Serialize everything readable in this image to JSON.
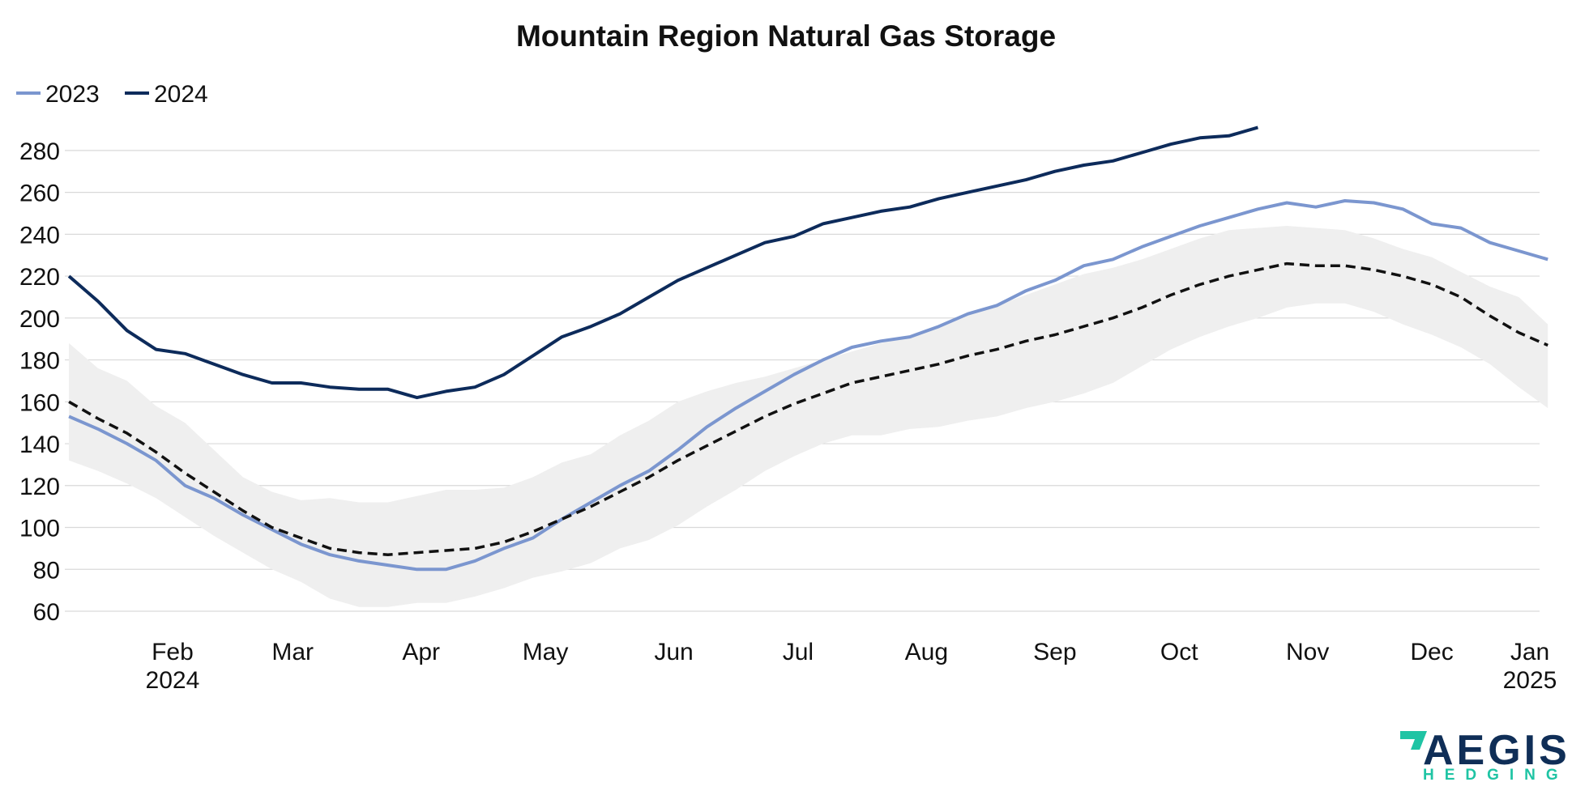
{
  "chart_data": {
    "type": "line",
    "title": "Mountain Region Natural Gas Storage",
    "xlabel": "",
    "ylabel": "",
    "ylim": [
      60,
      290
    ],
    "xlim": [
      "2024-01-06",
      "2024-12-27"
    ],
    "y_ticks": [
      60,
      80,
      100,
      120,
      140,
      160,
      180,
      200,
      220,
      240,
      260,
      280
    ],
    "x_ticks": [
      {
        "date": "2024-02-01",
        "label": "Feb",
        "sublabel": "2024"
      },
      {
        "date": "2024-03-01",
        "label": "Mar",
        "sublabel": ""
      },
      {
        "date": "2024-04-01",
        "label": "Apr",
        "sublabel": ""
      },
      {
        "date": "2024-05-01",
        "label": "May",
        "sublabel": ""
      },
      {
        "date": "2024-06-01",
        "label": "Jun",
        "sublabel": ""
      },
      {
        "date": "2024-07-01",
        "label": "Jul",
        "sublabel": ""
      },
      {
        "date": "2024-08-01",
        "label": "Aug",
        "sublabel": ""
      },
      {
        "date": "2024-09-01",
        "label": "Sep",
        "sublabel": ""
      },
      {
        "date": "2024-10-01",
        "label": "Oct",
        "sublabel": ""
      },
      {
        "date": "2024-11-01",
        "label": "Nov",
        "sublabel": ""
      },
      {
        "date": "2024-12-01",
        "label": "Dec",
        "sublabel": ""
      },
      {
        "date": "2025-01-01",
        "label": "Jan",
        "sublabel": "2025"
      }
    ],
    "grid": true,
    "legend_position": "top-left",
    "x": [
      "2024-01-07",
      "2024-01-14",
      "2024-01-21",
      "2024-01-28",
      "2024-02-04",
      "2024-02-11",
      "2024-02-18",
      "2024-02-25",
      "2024-03-03",
      "2024-03-10",
      "2024-03-17",
      "2024-03-24",
      "2024-03-31",
      "2024-04-07",
      "2024-04-14",
      "2024-04-21",
      "2024-04-28",
      "2024-05-05",
      "2024-05-12",
      "2024-05-19",
      "2024-05-26",
      "2024-06-02",
      "2024-06-09",
      "2024-06-16",
      "2024-06-23",
      "2024-06-30",
      "2024-07-07",
      "2024-07-14",
      "2024-07-21",
      "2024-07-28",
      "2024-08-04",
      "2024-08-11",
      "2024-08-18",
      "2024-08-25",
      "2024-09-01",
      "2024-09-08",
      "2024-09-15",
      "2024-09-22",
      "2024-09-29",
      "2024-10-06",
      "2024-10-13",
      "2024-10-20",
      "2024-10-27",
      "2024-11-03",
      "2024-11-10",
      "2024-11-17",
      "2024-11-24",
      "2024-12-01",
      "2024-12-08",
      "2024-12-15",
      "2024-12-22",
      "2024-12-29"
    ],
    "series": [
      {
        "name": "2023",
        "color": "#7b96cf",
        "style": "solid",
        "values": [
          153,
          147,
          140,
          132,
          120,
          114,
          106,
          99,
          92,
          87,
          84,
          82,
          80,
          80,
          84,
          90,
          95,
          104,
          112,
          120,
          127,
          137,
          148,
          157,
          165,
          173,
          180,
          186,
          189,
          191,
          196,
          202,
          206,
          213,
          218,
          225,
          228,
          234,
          239,
          244,
          248,
          252,
          255,
          253,
          256,
          255,
          252,
          245,
          243,
          236,
          232,
          228
        ]
      },
      {
        "name": "2024",
        "color": "#0d2b5b",
        "style": "solid",
        "values": [
          220,
          208,
          194,
          185,
          183,
          178,
          173,
          169,
          169,
          167,
          166,
          166,
          162,
          165,
          167,
          173,
          182,
          191,
          196,
          202,
          210,
          218,
          224,
          230,
          236,
          239,
          245,
          248,
          251,
          253,
          257,
          260,
          263,
          266,
          270,
          273,
          275,
          279,
          283,
          286,
          287,
          291,
          null,
          null,
          null,
          null,
          null,
          null,
          null,
          null,
          null,
          null
        ]
      },
      {
        "name": "",
        "color": "#111111",
        "style": "dashed",
        "values": [
          160,
          152,
          145,
          136,
          126,
          117,
          108,
          100,
          95,
          90,
          88,
          87,
          88,
          89,
          90,
          93,
          98,
          104,
          110,
          117,
          124,
          132,
          139,
          146,
          153,
          159,
          164,
          169,
          172,
          175,
          178,
          182,
          185,
          189,
          192,
          196,
          200,
          205,
          211,
          216,
          220,
          223,
          226,
          225,
          225,
          223,
          220,
          216,
          210,
          201,
          193,
          187
        ]
      }
    ],
    "band": {
      "name": "",
      "color": "#efefef",
      "upper": [
        188,
        176,
        170,
        158,
        150,
        137,
        124,
        117,
        113,
        114,
        112,
        112,
        115,
        118,
        118,
        119,
        124,
        131,
        135,
        144,
        151,
        160,
        165,
        169,
        172,
        176,
        180,
        184,
        188,
        191,
        196,
        202,
        206,
        211,
        216,
        221,
        224,
        228,
        233,
        238,
        242,
        243,
        244,
        243,
        242,
        238,
        233,
        229,
        222,
        215,
        210,
        197
      ],
      "lower": [
        132,
        127,
        121,
        114,
        105,
        96,
        88,
        80,
        74,
        66,
        62,
        62,
        64,
        64,
        67,
        71,
        76,
        79,
        83,
        90,
        94,
        101,
        110,
        118,
        127,
        134,
        140,
        144,
        144,
        147,
        148,
        151,
        153,
        157,
        160,
        164,
        169,
        177,
        185,
        191,
        196,
        200,
        205,
        207,
        207,
        203,
        197,
        192,
        186,
        178,
        167,
        157
      ]
    },
    "branding": {
      "logo_main": "AEGIS",
      "logo_sub": "HEDGING",
      "logo_main_color": "#0f2e57",
      "logo_accent_color": "#1fc4a4"
    }
  }
}
